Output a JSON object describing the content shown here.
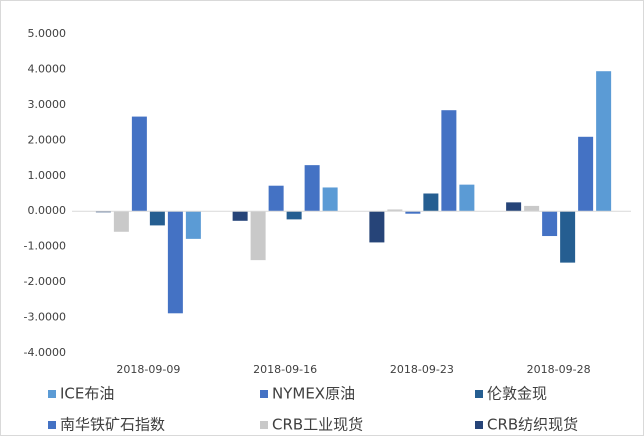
{
  "chart_data": {
    "type": "bar",
    "categories": [
      "2018-09-09",
      "2018-09-16",
      "2018-09-23",
      "2018-09-28"
    ],
    "series": [
      {
        "name": "ICE布油",
        "color": "#5b9bd5",
        "values": [
          -0.78,
          0.67,
          0.75,
          3.95
        ]
      },
      {
        "name": "NYMEX原油",
        "color": "#4472c4",
        "values": [
          -2.88,
          1.3,
          2.85,
          2.1
        ]
      },
      {
        "name": "伦敦金现",
        "color": "#255e91",
        "values": [
          -0.4,
          -0.23,
          0.5,
          -1.45
        ]
      },
      {
        "name": "南华铁矿石指数",
        "color": "#4472c4",
        "values": [
          2.67,
          0.72,
          -0.07,
          -0.7
        ]
      },
      {
        "name": "CRB工业现货",
        "color": "#c9c9c9",
        "values": [
          -0.58,
          -1.38,
          0.05,
          0.15
        ]
      },
      {
        "name": "CRB纺织现货",
        "color": "#264478",
        "values": [
          -0.03,
          -0.27,
          -0.88,
          0.25
        ]
      }
    ],
    "ylim": [
      -4,
      5
    ],
    "yticks": [
      {
        "value": -4,
        "label": "-4.0000"
      },
      {
        "value": -3,
        "label": "-3.0000"
      },
      {
        "value": -2,
        "label": "-2.0000"
      },
      {
        "value": -1,
        "label": "-1.0000"
      },
      {
        "value": 0,
        "label": "0.0000"
      },
      {
        "value": 1,
        "label": "1.0000"
      },
      {
        "value": 2,
        "label": "2.0000"
      },
      {
        "value": 3,
        "label": "3.0000"
      },
      {
        "value": 4,
        "label": "4.0000"
      },
      {
        "value": 5,
        "label": "5.0000"
      }
    ],
    "grid": false
  }
}
